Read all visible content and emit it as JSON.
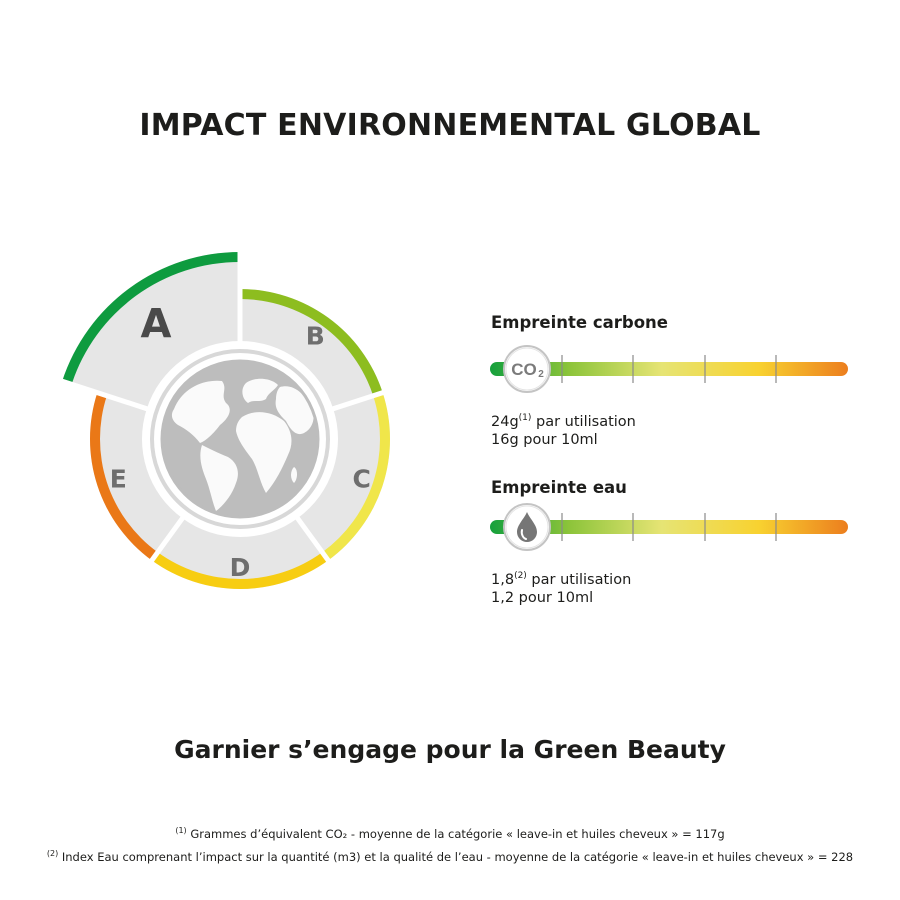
{
  "title": "IMPACT ENVIRONNEMENTAL GLOBAL",
  "scale": {
    "selected_grade": "A",
    "segments": [
      {
        "grade": "A",
        "color": "#0e9b3f"
      },
      {
        "grade": "B",
        "color": "#8dbd1f"
      },
      {
        "grade": "C",
        "color": "#f0e64a"
      },
      {
        "grade": "D",
        "color": "#f7cd12"
      },
      {
        "grade": "E",
        "color": "#ea7817"
      }
    ]
  },
  "carbon": {
    "title": "Empreinte carbone",
    "icon_label": "CO₂",
    "value": "24g",
    "value_ref": "(1)",
    "value_suffix": "par utilisation",
    "per_10ml": "16g pour 10ml"
  },
  "water": {
    "title": "Empreinte eau",
    "icon": "water-drop-icon",
    "value": "1,8",
    "value_ref": "(2)",
    "value_suffix": "par utilisation",
    "per_10ml": "1,2 pour 10ml"
  },
  "colors": {
    "gradient": [
      "#15a03c",
      "#8cc43a",
      "#e6e474",
      "#f8d230",
      "#ec7e1e"
    ],
    "segment_fill": "#e6e6e6",
    "globe": "#bdbdbd"
  },
  "engagement": "Garnier s’engage pour la Green Beauty",
  "footnotes": [
    {
      "ref": "(1)",
      "text": "Grammes d’équivalent CO₂ - moyenne de la catégorie « leave-in et huiles cheveux » = 117g"
    },
    {
      "ref": "(2)",
      "text": "Index Eau comprenant l’impact sur la quantité (m3) et la qualité de l’eau - moyenne de la catégorie « leave-in et huiles cheveux » = 228"
    }
  ]
}
